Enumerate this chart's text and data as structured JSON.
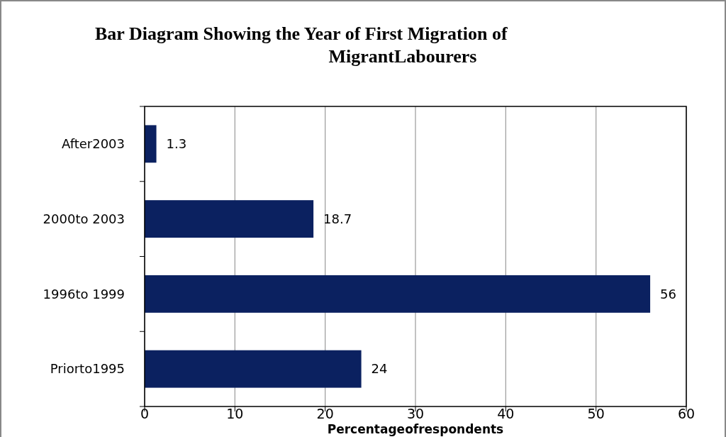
{
  "chart_data": {
    "type": "bar",
    "orientation": "horizontal",
    "title": "Bar Diagram Showing the Year of First Migration of MigrantLabourers",
    "xlabel": "Percentageofrespondents",
    "categories": [
      "After2003",
      "2000to 2003",
      "1996to 1999",
      "Priorto1995"
    ],
    "values": [
      1.3,
      18.7,
      56,
      24
    ],
    "color": "#0b2160",
    "xlim": [
      0,
      60
    ],
    "xticks": [
      0,
      10,
      20,
      30,
      40,
      50,
      60
    ],
    "grid": "x",
    "data_labels": true
  }
}
